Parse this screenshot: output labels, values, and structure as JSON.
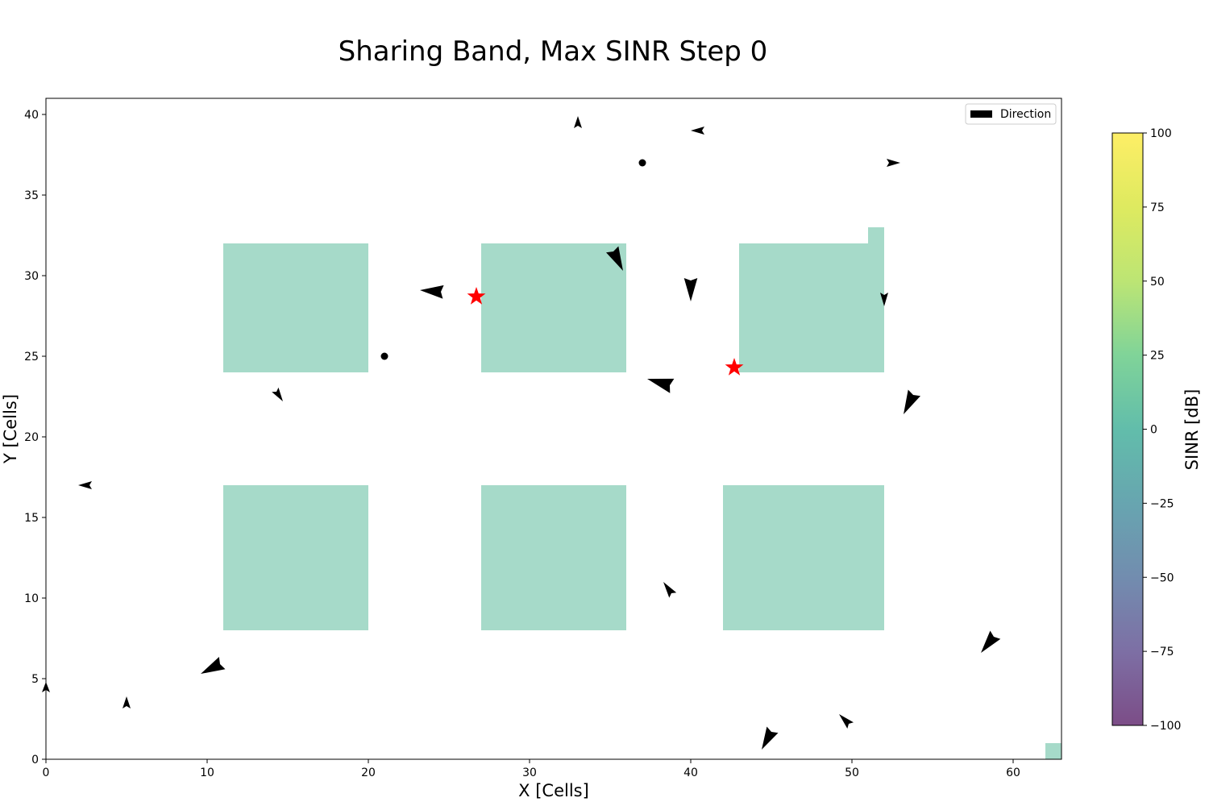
{
  "chart_data": {
    "type": "heatmap",
    "title": "Sharing Band, Max SINR Step 0",
    "xlabel": "X [Cells]",
    "ylabel": "Y [Cells]",
    "xlim": [
      0,
      63
    ],
    "ylim": [
      0,
      41
    ],
    "xticks": [
      0,
      10,
      20,
      30,
      40,
      50,
      60
    ],
    "yticks": [
      0,
      5,
      10,
      15,
      20,
      25,
      30,
      35,
      40
    ],
    "grid": false,
    "legend": {
      "placement": "top-right",
      "entries": [
        "Direction"
      ]
    },
    "colorbar": {
      "label": "SINR [dB]",
      "range": [
        -100,
        100
      ],
      "ticks": [
        100,
        75,
        50,
        25,
        0,
        -25,
        -50,
        -75,
        -100
      ],
      "tick_labels": [
        "100",
        "75",
        "50",
        "25",
        "0",
        "−25",
        "−50",
        "−75",
        "−100"
      ],
      "colormap": "viridis",
      "alpha": 0.7
    },
    "buildings": [
      {
        "x0": 11,
        "x1": 20,
        "y0": 24,
        "y1": 32
      },
      {
        "x0": 27,
        "x1": 36,
        "y0": 24,
        "y1": 32
      },
      {
        "x0": 43,
        "x1": 52,
        "y0": 24,
        "y1": 32
      },
      {
        "x0": 51,
        "x1": 52,
        "y0": 32,
        "y1": 33
      },
      {
        "x0": 11,
        "x1": 20,
        "y0": 8,
        "y1": 17
      },
      {
        "x0": 27,
        "x1": 36,
        "y0": 8,
        "y1": 17
      },
      {
        "x0": 42,
        "x1": 52,
        "y0": 8,
        "y1": 17
      },
      {
        "x0": 62,
        "x1": 63,
        "y0": 0,
        "y1": 1
      }
    ],
    "building_color": "#a6dac9",
    "base_stations": [
      {
        "x": 26.7,
        "y": 28.7
      },
      {
        "x": 42.7,
        "y": 24.3
      }
    ],
    "directions": [
      {
        "x": 33,
        "y": 39.3,
        "u": 0,
        "v": 0.6
      },
      {
        "x": 40.7,
        "y": 39,
        "u": -0.7,
        "v": 0
      },
      {
        "x": 37,
        "y": 37,
        "u": 0,
        "v": 0
      },
      {
        "x": 52.3,
        "y": 37,
        "u": 0.7,
        "v": 0
      },
      {
        "x": 35.2,
        "y": 31.5,
        "u": 0.6,
        "v": -1.2
      },
      {
        "x": 24.5,
        "y": 29,
        "u": -1.3,
        "v": 0.1
      },
      {
        "x": 40,
        "y": 29.7,
        "u": 0,
        "v": -1.3
      },
      {
        "x": 52,
        "y": 28.8,
        "u": 0,
        "v": -0.7
      },
      {
        "x": 21,
        "y": 25,
        "u": 0,
        "v": 0
      },
      {
        "x": 38.7,
        "y": 23.2,
        "u": -1.4,
        "v": 0.4
      },
      {
        "x": 14.3,
        "y": 22.8,
        "u": 0.4,
        "v": -0.6
      },
      {
        "x": 53.8,
        "y": 22.6,
        "u": -0.6,
        "v": -1.2
      },
      {
        "x": 2.7,
        "y": 17,
        "u": -0.7,
        "v": 0
      },
      {
        "x": 38.8,
        "y": 10.3,
        "u": -0.5,
        "v": 0.7
      },
      {
        "x": 58.8,
        "y": 7.6,
        "u": -0.8,
        "v": -1
      },
      {
        "x": 10.8,
        "y": 5.9,
        "u": -1.2,
        "v": -0.6
      },
      {
        "x": 0,
        "y": 4.3,
        "u": 0,
        "v": 0.5
      },
      {
        "x": 5,
        "y": 3.3,
        "u": 0,
        "v": 0.6
      },
      {
        "x": 45,
        "y": 1.7,
        "u": -0.6,
        "v": -1.1
      },
      {
        "x": 49.8,
        "y": 2.2,
        "u": -0.6,
        "v": 0.6
      }
    ]
  }
}
